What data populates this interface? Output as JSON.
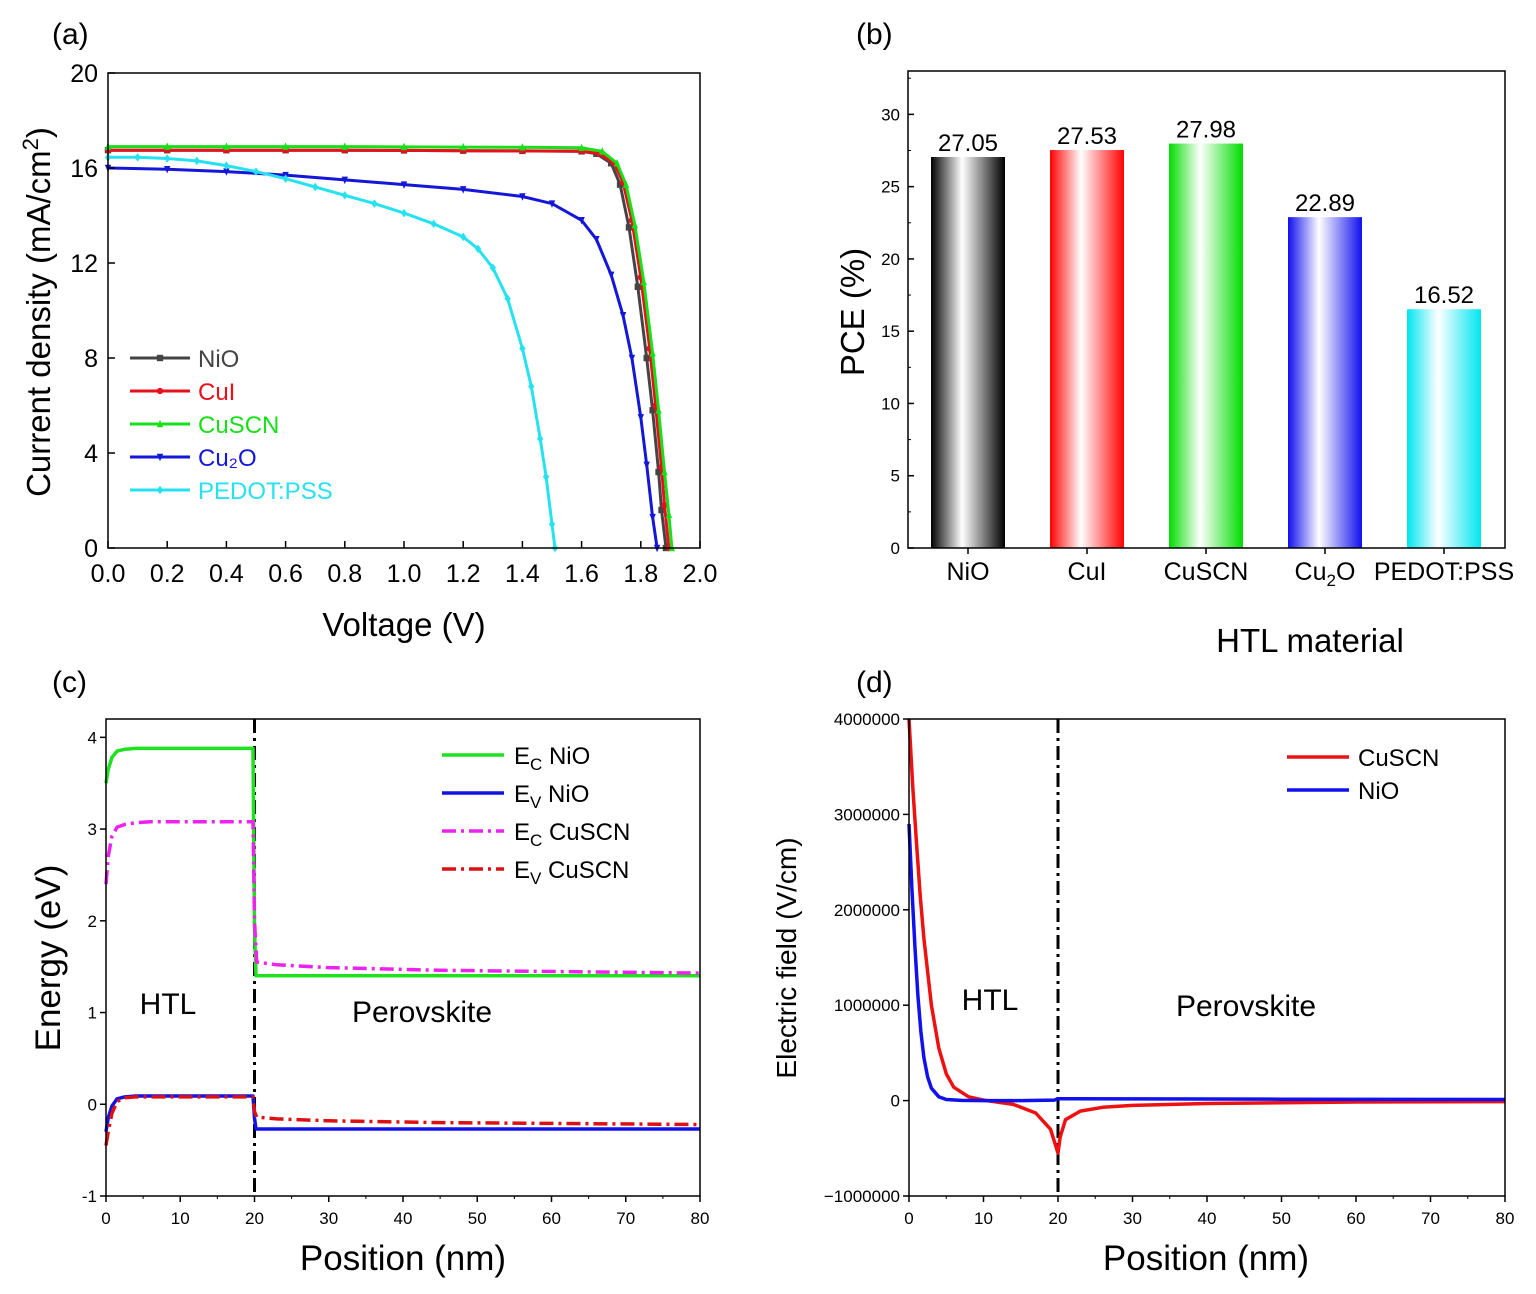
{
  "chart_data": [
    {
      "panel": "(a)",
      "type": "line",
      "xlabel": "Voltage (V)",
      "ylabel": "Current density (mA/cm²)",
      "xlim": [
        0,
        2.0
      ],
      "ylim": [
        0,
        20
      ],
      "xticks": [
        "0.0",
        "0.2",
        "0.4",
        "0.6",
        "0.8",
        "1.0",
        "1.2",
        "1.4",
        "1.6",
        "1.8",
        "2.0"
      ],
      "yticks": [
        "0",
        "4",
        "8",
        "12",
        "16",
        "20"
      ],
      "legend_position": "lower-left",
      "series": [
        {
          "name": "NiO",
          "color": "#444444",
          "marker": "square",
          "x": [
            0,
            0.2,
            0.4,
            0.6,
            0.8,
            1.0,
            1.2,
            1.4,
            1.6,
            1.65,
            1.7,
            1.73,
            1.76,
            1.79,
            1.82,
            1.84,
            1.86,
            1.87,
            1.885
          ],
          "y": [
            16.75,
            16.75,
            16.75,
            16.75,
            16.75,
            16.74,
            16.73,
            16.72,
            16.7,
            16.6,
            16.2,
            15.3,
            13.5,
            11.0,
            8.0,
            5.8,
            3.2,
            1.6,
            0
          ]
        },
        {
          "name": "CuI",
          "color": "#e8101b",
          "marker": "circle",
          "x": [
            0,
            0.2,
            0.4,
            0.6,
            0.8,
            1.0,
            1.2,
            1.4,
            1.6,
            1.66,
            1.71,
            1.74,
            1.77,
            1.8,
            1.83,
            1.85,
            1.87,
            1.88,
            1.895
          ],
          "y": [
            16.75,
            16.75,
            16.75,
            16.75,
            16.75,
            16.74,
            16.73,
            16.72,
            16.71,
            16.6,
            16.2,
            15.4,
            13.8,
            11.4,
            8.4,
            6.0,
            3.4,
            1.8,
            0
          ]
        },
        {
          "name": "CuSCN",
          "color": "#18e018",
          "marker": "triangle-up",
          "x": [
            0,
            0.2,
            0.4,
            0.6,
            0.8,
            1.0,
            1.2,
            1.4,
            1.6,
            1.67,
            1.72,
            1.75,
            1.78,
            1.81,
            1.84,
            1.86,
            1.88,
            1.895,
            1.905
          ],
          "y": [
            16.9,
            16.9,
            16.9,
            16.9,
            16.9,
            16.89,
            16.88,
            16.87,
            16.85,
            16.7,
            16.2,
            15.3,
            13.6,
            11.2,
            8.2,
            5.8,
            3.2,
            1.4,
            0
          ]
        },
        {
          "name": "Cu₂O",
          "color": "#1416d8",
          "marker": "triangle-down",
          "x": [
            0,
            0.2,
            0.4,
            0.6,
            0.8,
            1.0,
            1.2,
            1.4,
            1.5,
            1.6,
            1.65,
            1.7,
            1.74,
            1.77,
            1.8,
            1.82,
            1.84,
            1.855
          ],
          "y": [
            16.0,
            15.95,
            15.85,
            15.7,
            15.5,
            15.3,
            15.1,
            14.8,
            14.5,
            13.8,
            13.0,
            11.5,
            9.8,
            8.0,
            5.5,
            3.5,
            1.3,
            0
          ]
        },
        {
          "name": "PEDOT:PSS",
          "color": "#26e2f0",
          "marker": "diamond",
          "x": [
            0,
            0.1,
            0.2,
            0.3,
            0.4,
            0.5,
            0.6,
            0.7,
            0.8,
            0.9,
            1.0,
            1.1,
            1.2,
            1.25,
            1.3,
            1.35,
            1.4,
            1.43,
            1.46,
            1.48,
            1.5,
            1.51
          ],
          "y": [
            16.45,
            16.45,
            16.4,
            16.3,
            16.1,
            15.85,
            15.55,
            15.2,
            14.85,
            14.5,
            14.1,
            13.65,
            13.1,
            12.6,
            11.8,
            10.5,
            8.4,
            6.8,
            4.6,
            3.0,
            1.0,
            0
          ]
        }
      ]
    },
    {
      "panel": "(b)",
      "type": "bar",
      "xlabel": "HTL material",
      "ylabel": "PCE (%)",
      "ylim": [
        0,
        33
      ],
      "yticks": [
        "0",
        "5",
        "10",
        "15",
        "20",
        "25",
        "30"
      ],
      "categories": [
        "NiO",
        "CuI",
        "CuSCN",
        "Cu₂O",
        "PEDOT:PSS"
      ],
      "values": [
        27.05,
        27.53,
        27.98,
        22.89,
        16.52
      ],
      "value_labels": [
        "27.05",
        "27.53",
        "27.98",
        "22.89",
        "16.52"
      ],
      "colors": [
        "#000000",
        "#ff0000",
        "#00dd00",
        "#1010ee",
        "#00e6f0"
      ]
    },
    {
      "panel": "(c)",
      "type": "line",
      "xlabel": "Position  (nm)",
      "ylabel": "Energy (eV)",
      "xlim": [
        0,
        80
      ],
      "ylim": [
        -1,
        4.2
      ],
      "xticks": [
        "0",
        "10",
        "20",
        "30",
        "40",
        "50",
        "60",
        "70",
        "80"
      ],
      "yticks": [
        "-1",
        "0",
        "1",
        "2",
        "3",
        "4"
      ],
      "interface_x": 20,
      "annotations": [
        "HTL",
        "Perovskite"
      ],
      "legend_position": "top-right",
      "series": [
        {
          "name": "E",
          "subscript": "C",
          "suffix": " NiO",
          "color": "#1fe11f",
          "style": "solid",
          "x": [
            0,
            0.3,
            0.8,
            1.5,
            2.5,
            4,
            19.8,
            20,
            20.2,
            80
          ],
          "y": [
            3.5,
            3.65,
            3.78,
            3.85,
            3.87,
            3.88,
            3.88,
            1.9,
            1.4,
            1.4
          ]
        },
        {
          "name": "E",
          "subscript": "V",
          "suffix": " NiO",
          "color": "#1212e6",
          "style": "solid",
          "x": [
            0,
            0.3,
            0.8,
            1.5,
            2.5,
            4,
            19.8,
            20,
            20.2,
            80
          ],
          "y": [
            -0.3,
            -0.15,
            -0.02,
            0.06,
            0.08,
            0.09,
            0.09,
            -0.15,
            -0.27,
            -0.27
          ]
        },
        {
          "name": "E",
          "subscript": "C",
          "suffix": " CuSCN",
          "color": "#ee22ee",
          "style": "dashdot",
          "x": [
            0,
            0.3,
            0.8,
            1.5,
            2.5,
            4,
            6,
            19.8,
            20,
            20.3,
            23,
            30,
            45,
            80
          ],
          "y": [
            2.4,
            2.7,
            2.92,
            3.02,
            3.05,
            3.07,
            3.08,
            3.08,
            2.0,
            1.55,
            1.52,
            1.49,
            1.46,
            1.43
          ]
        },
        {
          "name": "E",
          "subscript": "V",
          "suffix": " CuSCN",
          "color": "#dd1111",
          "style": "dashdot",
          "x": [
            0,
            0.3,
            0.8,
            1.5,
            2.5,
            4,
            19.8,
            20,
            20.3,
            23,
            30,
            45,
            80
          ],
          "y": [
            -0.45,
            -0.3,
            -0.1,
            0.03,
            0.07,
            0.08,
            0.08,
            -0.08,
            -0.14,
            -0.16,
            -0.18,
            -0.2,
            -0.22
          ]
        }
      ]
    },
    {
      "panel": "(d)",
      "type": "line",
      "xlabel": "Position  (nm)",
      "ylabel": "Electric field (V/cm)",
      "xlim": [
        0,
        80
      ],
      "ylim": [
        -1000000,
        4000000
      ],
      "xticks": [
        "0",
        "10",
        "20",
        "30",
        "40",
        "50",
        "60",
        "70",
        "80"
      ],
      "yticks": [
        "−1000000",
        "0",
        "1000000",
        "2000000",
        "3000000",
        "4000000"
      ],
      "interface_x": 20,
      "annotations": [
        "HTL",
        "Perovskite"
      ],
      "legend_position": "top-right",
      "series": [
        {
          "name": "CuSCN",
          "color": "#ee1111",
          "style": "solid",
          "x": [
            0,
            0.5,
            1,
            1.5,
            2,
            3,
            4,
            5,
            6,
            8,
            10,
            14,
            17,
            19,
            20,
            20.3,
            21,
            23,
            26,
            30,
            40,
            60,
            80
          ],
          "y": [
            4000000,
            3300000,
            2700000,
            2150000,
            1700000,
            1000000,
            550000,
            280000,
            140000,
            40000,
            5000,
            -40000,
            -130000,
            -300000,
            -550000,
            -380000,
            -200000,
            -110000,
            -70000,
            -50000,
            -30000,
            -15000,
            -10000
          ]
        },
        {
          "name": "NiO",
          "color": "#1111ee",
          "style": "solid",
          "x": [
            0,
            0.4,
            0.8,
            1.2,
            1.6,
            2,
            2.5,
            3,
            4,
            5,
            7,
            10,
            15,
            19.5,
            20,
            22,
            30,
            50,
            80
          ],
          "y": [
            2900000,
            2200000,
            1600000,
            1100000,
            720000,
            450000,
            250000,
            130000,
            40000,
            12000,
            2000,
            0,
            0,
            5000,
            20000,
            20000,
            18000,
            15000,
            12000
          ]
        }
      ]
    }
  ]
}
